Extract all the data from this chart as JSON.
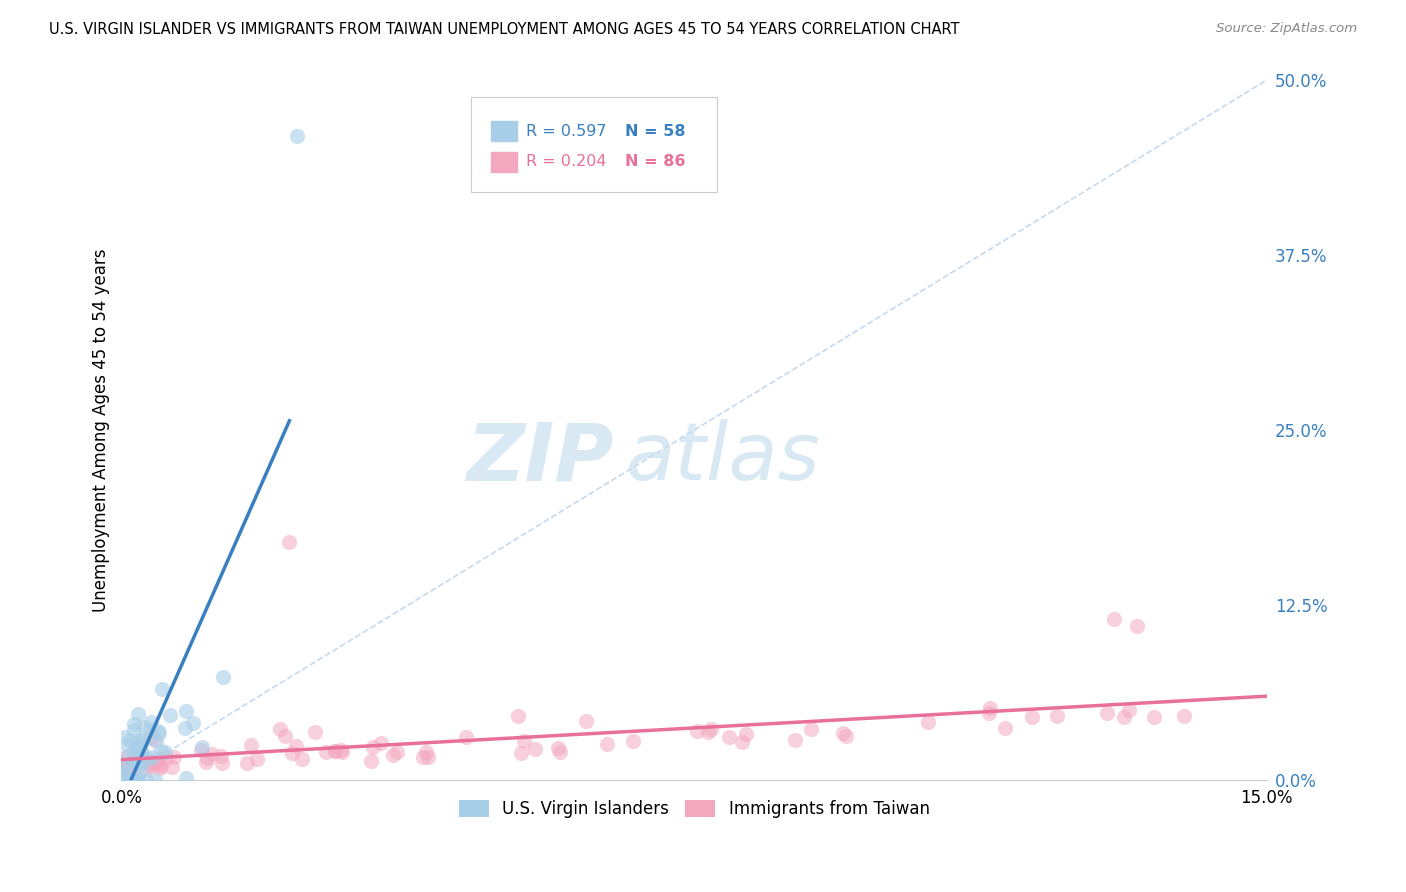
{
  "title": "U.S. VIRGIN ISLANDER VS IMMIGRANTS FROM TAIWAN UNEMPLOYMENT AMONG AGES 45 TO 54 YEARS CORRELATION CHART",
  "source": "Source: ZipAtlas.com",
  "ylabel_label": "Unemployment Among Ages 45 to 54 years",
  "ylabel_ticks": [
    0.0,
    12.5,
    25.0,
    37.5,
    50.0
  ],
  "xmin": 0.0,
  "xmax": 15.0,
  "ymin": 0.0,
  "ymax": 50.0,
  "legend_entry1_R": "0.597",
  "legend_entry1_N": "58",
  "legend_entry2_R": "0.204",
  "legend_entry2_N": "86",
  "color_blue": "#A8CEE8",
  "color_pink": "#F4A8C0",
  "color_blue_line": "#3A80C0",
  "color_pink_line": "#E8709A",
  "color_dashed": "#B8D0E8",
  "legend_labels": [
    "U.S. Virgin Islanders",
    "Immigrants from Taiwan"
  ],
  "background_color": "#FFFFFF",
  "grid_color": "#E0E0E0"
}
